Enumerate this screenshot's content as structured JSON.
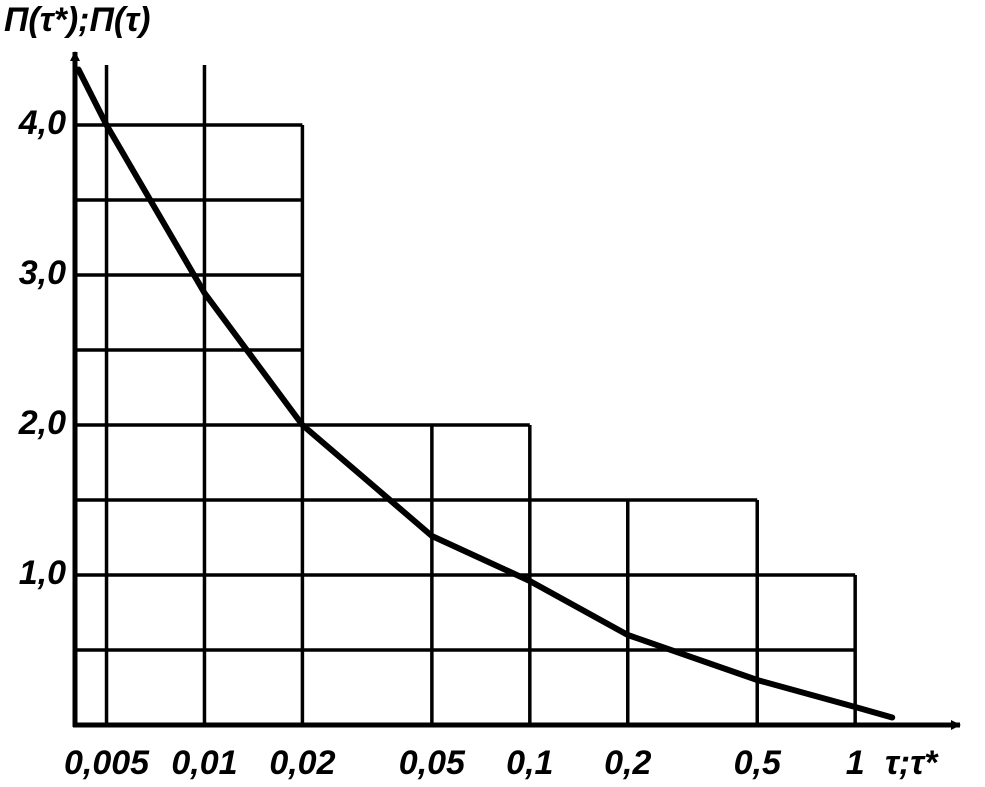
{
  "chart_data": {
    "type": "line",
    "ylabel": "Π(τ*);Π(τ)",
    "xlabel": "τ;τ*",
    "xscale": "log",
    "xlim": [
      0.004,
      2.1
    ],
    "ylim": [
      0,
      4.4
    ],
    "xticks": [
      {
        "value": 0.005,
        "label": "0,005"
      },
      {
        "value": 0.01,
        "label": "0,01"
      },
      {
        "value": 0.02,
        "label": "0,02"
      },
      {
        "value": 0.05,
        "label": "0,05"
      },
      {
        "value": 0.1,
        "label": "0,1"
      },
      {
        "value": 0.2,
        "label": "0,2"
      },
      {
        "value": 0.5,
        "label": "0,5"
      },
      1
    ],
    "yticks": [
      {
        "value": 1,
        "label": "1,0"
      },
      {
        "value": 2,
        "label": "2,0"
      },
      {
        "value": 3,
        "label": "3,0"
      },
      {
        "value": 4,
        "label": "4,0"
      }
    ],
    "yminor": [
      0.5,
      1.5,
      2.5,
      3.5
    ],
    "step_edges": [
      0.02,
      0.1,
      0.5,
      1
    ],
    "step_heights": [
      4,
      2,
      1.5,
      1
    ],
    "color": "#000000",
    "series": [
      {
        "x": [
          0.0041,
          0.005,
          0.01,
          0.02,
          0.05,
          0.1,
          0.2,
          0.5,
          1,
          1.3
        ],
        "values": [
          4.37,
          4.0,
          2.88,
          2.0,
          1.26,
          0.96,
          0.6,
          0.3,
          0.12,
          0.05
        ]
      }
    ]
  }
}
